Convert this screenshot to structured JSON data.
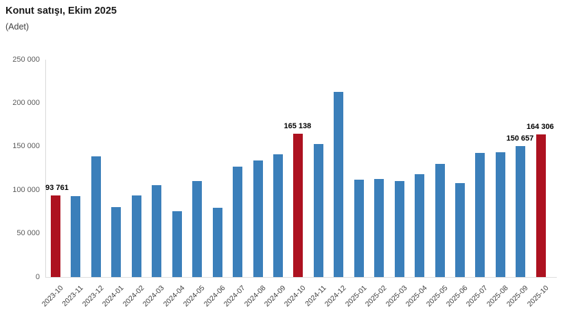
{
  "header": {
    "title": "Konut satışı, Ekim 2025",
    "subtitle": "(Adet)"
  },
  "chart_data": {
    "type": "bar",
    "title": "Konut satışı, Ekim 2025",
    "subtitle": "(Adet)",
    "ylabel": "Adet",
    "xlabel": "",
    "grid": false,
    "legend": "none",
    "ylim": [
      0,
      250000
    ],
    "y_ticks": [
      "0",
      "50 000",
      "100 000",
      "150 000",
      "200 000",
      "250 000"
    ],
    "categories": [
      "2023-10",
      "2023-11",
      "2023-12",
      "2024-01",
      "2024-02",
      "2024-03",
      "2024-04",
      "2024-05",
      "2024-06",
      "2024-07",
      "2024-08",
      "2024-09",
      "2024-10",
      "2024-11",
      "2024-12",
      "2025-01",
      "2025-02",
      "2025-03",
      "2025-04",
      "2025-05",
      "2025-06",
      "2025-07",
      "2025-08",
      "2025-09",
      "2025-10"
    ],
    "values": [
      93761,
      93043,
      138577,
      80308,
      93902,
      105476,
      75569,
      110588,
      79313,
      127088,
      134155,
      140919,
      165138,
      153014,
      212637,
      112173,
      112818,
      110795,
      118359,
      130025,
      107723,
      142858,
      143319,
      150657,
      164306
    ],
    "highlighted_indices": [
      0,
      12,
      24
    ],
    "data_labels": [
      {
        "index": 0,
        "text": "93 761"
      },
      {
        "index": 12,
        "text": "165 138"
      },
      {
        "index": 23,
        "text": "150 657"
      },
      {
        "index": 24,
        "text": "164 306"
      }
    ],
    "colors": {
      "bar": "#3b7fba",
      "highlight": "#ad1220",
      "axis_line": "#d9d9d9",
      "tick_label": "#595959",
      "data_label": "#000000"
    }
  }
}
